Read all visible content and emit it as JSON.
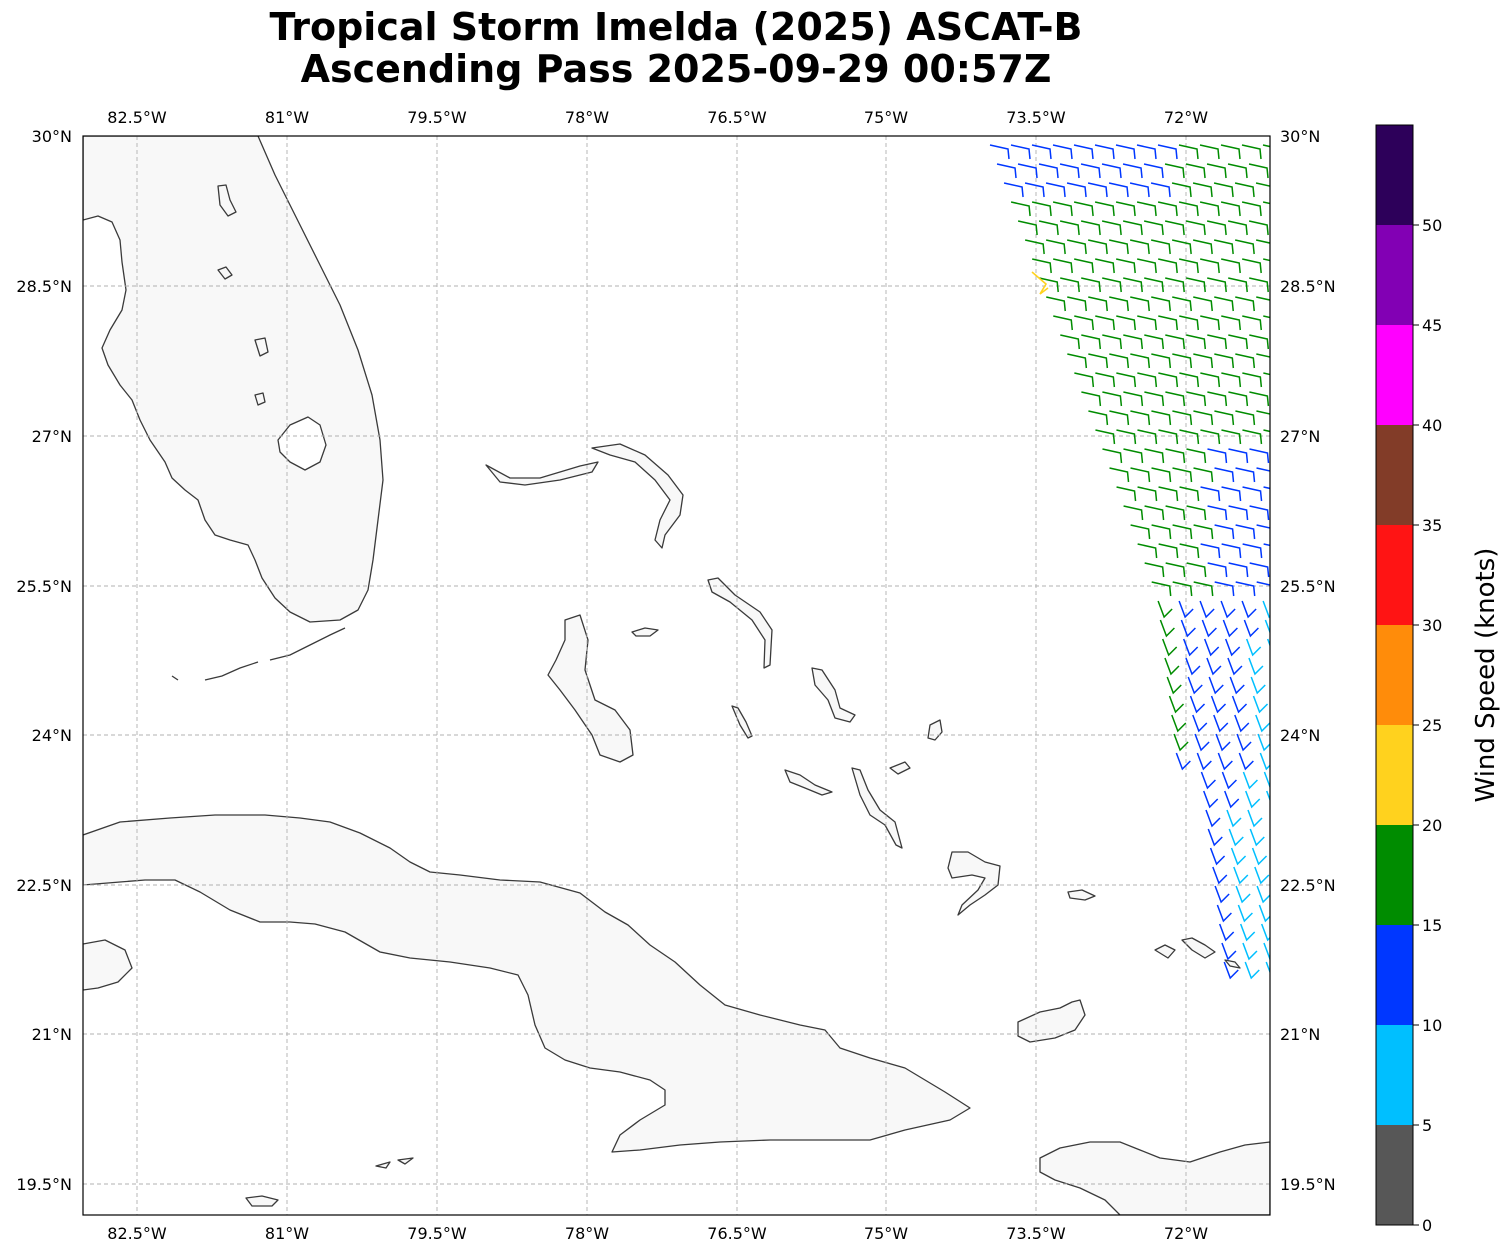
{
  "title": {
    "line1": "Tropical Storm Imelda (2025) ASCAT-B",
    "line2": "Ascending Pass 2025-09-29 00:57Z"
  },
  "map": {
    "lon_ticks": [
      "82.5°W",
      "81°W",
      "79.5°W",
      "78°W",
      "76.5°W",
      "75°W",
      "73.5°W",
      "72°W"
    ],
    "lat_ticks": [
      "30°N",
      "28.5°N",
      "27°N",
      "25.5°N",
      "24°N",
      "22.5°N",
      "21°N",
      "19.5°N"
    ],
    "gridlines": true,
    "coastline_color": "#3a3a3a",
    "land_fill": "#f8f8f8"
  },
  "colorbar": {
    "label": "Wind Speed (knots)",
    "ticks": [
      "0",
      "5",
      "10",
      "15",
      "20",
      "25",
      "30",
      "35",
      "40",
      "45",
      "50"
    ],
    "bins": [
      {
        "range": "0-5",
        "color": "#575757"
      },
      {
        "range": "5-10",
        "color": "#00bfff"
      },
      {
        "range": "10-15",
        "color": "#0037ff"
      },
      {
        "range": "15-20",
        "color": "#008c00"
      },
      {
        "range": "20-25",
        "color": "#ffd21e"
      },
      {
        "range": "25-30",
        "color": "#ff8c0a"
      },
      {
        "range": "30-35",
        "color": "#ff1414"
      },
      {
        "range": "35-40",
        "color": "#823c28"
      },
      {
        "range": "40-45",
        "color": "#ff00ff"
      },
      {
        "range": "45-50",
        "color": "#8200b4"
      },
      {
        "range": "50+",
        "color": "#2d005a"
      }
    ]
  }
}
